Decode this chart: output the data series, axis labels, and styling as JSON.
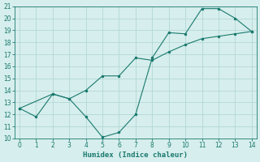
{
  "xlabel": "Humidex (Indice chaleur)",
  "line1_x": [
    0,
    1,
    2,
    3,
    4,
    5,
    6,
    7,
    8,
    9,
    10,
    11,
    12,
    13,
    14
  ],
  "line1_y": [
    12.5,
    11.8,
    13.7,
    13.3,
    11.8,
    10.1,
    10.5,
    12.0,
    16.7,
    18.8,
    18.7,
    20.8,
    20.8,
    20.0,
    18.9
  ],
  "line2_x": [
    0,
    2,
    3,
    4,
    5,
    6,
    7,
    8,
    9,
    10,
    11,
    12,
    13,
    14
  ],
  "line2_y": [
    12.5,
    13.7,
    13.3,
    14.0,
    15.2,
    15.2,
    16.7,
    16.5,
    17.2,
    17.8,
    18.3,
    18.5,
    18.7,
    18.9
  ],
  "color": "#1a7a6e",
  "background_color": "#d6eeed",
  "grid_color": "#b3d8d6",
  "ylim": [
    10,
    21
  ],
  "xlim": [
    -0.3,
    14.3
  ],
  "yticks": [
    10,
    11,
    12,
    13,
    14,
    15,
    16,
    17,
    18,
    19,
    20,
    21
  ],
  "xticks": [
    0,
    1,
    2,
    3,
    4,
    5,
    6,
    7,
    8,
    9,
    10,
    11,
    12,
    13,
    14
  ]
}
